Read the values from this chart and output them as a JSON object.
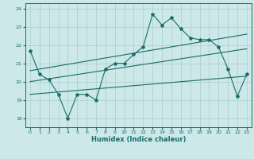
{
  "title": "",
  "xlabel": "Humidex (Indice chaleur)",
  "xlim": [
    -0.5,
    23.5
  ],
  "ylim": [
    17.5,
    24.3
  ],
  "yticks": [
    18,
    19,
    20,
    21,
    22,
    23,
    24
  ],
  "xticks": [
    0,
    1,
    2,
    3,
    4,
    5,
    6,
    7,
    8,
    9,
    10,
    11,
    12,
    13,
    14,
    15,
    16,
    17,
    18,
    19,
    20,
    21,
    22,
    23
  ],
  "bg_color": "#cce8e8",
  "grid_color": "#aacccc",
  "line_color": "#1a6b6b",
  "main_line_x": [
    0,
    1,
    2,
    3,
    4,
    5,
    6,
    7,
    8,
    9,
    10,
    11,
    12,
    13,
    14,
    15,
    16,
    17,
    18,
    19,
    20,
    21,
    22,
    23
  ],
  "main_line_y": [
    21.7,
    20.4,
    20.1,
    19.3,
    18.0,
    19.3,
    19.3,
    19.0,
    20.7,
    21.0,
    21.0,
    21.5,
    21.9,
    23.7,
    23.1,
    23.5,
    22.9,
    22.4,
    22.3,
    22.3,
    21.9,
    20.7,
    19.2,
    20.4
  ],
  "upper_line_x": [
    0,
    23
  ],
  "upper_line_y": [
    20.6,
    22.6
  ],
  "lower_line_x": [
    0,
    23
  ],
  "lower_line_y": [
    19.3,
    20.3
  ],
  "middle_line_x": [
    0,
    23
  ],
  "middle_line_y": [
    20.0,
    21.8
  ]
}
